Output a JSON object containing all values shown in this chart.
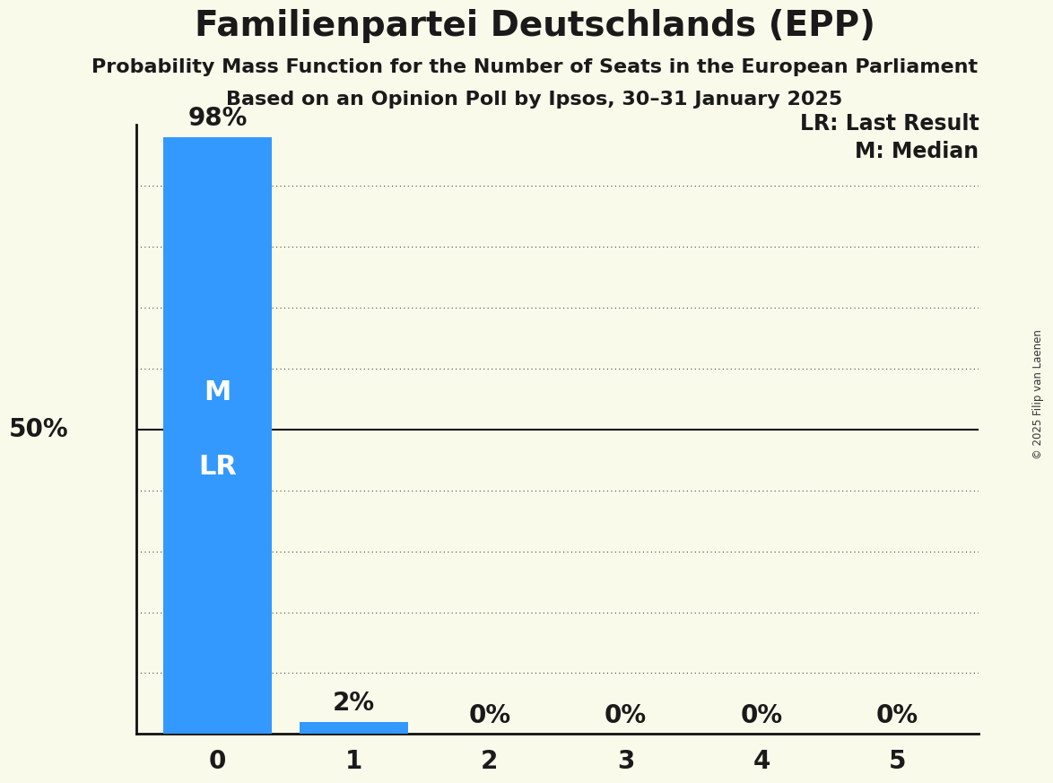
{
  "title": "Familienpartei Deutschlands (EPP)",
  "subtitle1": "Probability Mass Function for the Number of Seats in the European Parliament",
  "subtitle2": "Based on an Opinion Poll by Ipsos, 30–31 January 2025",
  "copyright": "© 2025 Filip van Laenen",
  "categories": [
    0,
    1,
    2,
    3,
    4,
    5
  ],
  "values": [
    0.98,
    0.02,
    0.0,
    0.0,
    0.0,
    0.0
  ],
  "bar_color": "#3399FF",
  "bar_labels": [
    "98%",
    "2%",
    "0%",
    "0%",
    "0%",
    "0%"
  ],
  "background_color": "#FAFAEB",
  "median": 0,
  "last_result": 0,
  "legend_lr": "LR: Last Result",
  "legend_m": "M: Median",
  "ylim": [
    0,
    1.0
  ],
  "yticks": [
    0.1,
    0.2,
    0.3,
    0.4,
    0.5,
    0.6,
    0.7,
    0.8,
    0.9
  ],
  "solid_ytick": 0.5,
  "title_fontsize": 28,
  "subtitle_fontsize": 16,
  "bar_label_fontsize": 20,
  "axis_fontsize": 20,
  "legend_fontsize": 17,
  "inner_label_fontsize": 22,
  "ylabel_fontsize": 20
}
